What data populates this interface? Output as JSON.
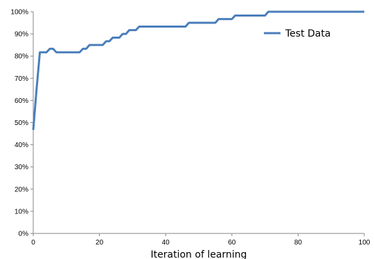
{
  "chart_data": {
    "type": "line",
    "title": "",
    "xlabel": "Iteration of learning",
    "ylabel": "",
    "xlim": [
      0,
      100
    ],
    "ylim": [
      0,
      100
    ],
    "x_ticks": [
      0,
      20,
      40,
      60,
      80,
      100
    ],
    "y_ticks": [
      0,
      10,
      20,
      30,
      40,
      50,
      60,
      70,
      80,
      90,
      100
    ],
    "y_tick_suffix": "%",
    "grid": false,
    "legend_position": "top-right",
    "series": [
      {
        "name": "Test Data",
        "color": "#4a7ebb",
        "x": [
          0,
          1,
          2,
          3,
          4,
          5,
          6,
          7,
          8,
          9,
          10,
          11,
          12,
          13,
          14,
          15,
          16,
          17,
          18,
          19,
          20,
          21,
          22,
          23,
          24,
          25,
          26,
          27,
          28,
          29,
          30,
          31,
          32,
          33,
          34,
          35,
          36,
          37,
          38,
          39,
          40,
          41,
          42,
          43,
          44,
          45,
          46,
          47,
          48,
          49,
          50,
          51,
          52,
          53,
          54,
          55,
          56,
          57,
          58,
          59,
          60,
          61,
          62,
          63,
          64,
          65,
          66,
          67,
          68,
          69,
          70,
          71,
          72,
          73,
          74,
          75,
          76,
          77,
          78,
          79,
          80,
          81,
          82,
          83,
          84,
          85,
          86,
          87,
          88,
          89,
          90,
          91,
          92,
          93,
          94,
          95,
          96,
          97,
          98,
          99,
          100
        ],
        "y": [
          46.7,
          65,
          81.7,
          81.7,
          81.7,
          83.3,
          83.3,
          81.7,
          81.7,
          81.7,
          81.7,
          81.7,
          81.7,
          81.7,
          81.7,
          83.3,
          83.3,
          85,
          85,
          85,
          85,
          85,
          86.7,
          86.7,
          88.3,
          88.3,
          88.3,
          90,
          90,
          91.7,
          91.7,
          91.7,
          93.3,
          93.3,
          93.3,
          93.3,
          93.3,
          93.3,
          93.3,
          93.3,
          93.3,
          93.3,
          93.3,
          93.3,
          93.3,
          93.3,
          93.3,
          95,
          95,
          95,
          95,
          95,
          95,
          95,
          95,
          95,
          96.7,
          96.7,
          96.7,
          96.7,
          96.7,
          98.3,
          98.3,
          98.3,
          98.3,
          98.3,
          98.3,
          98.3,
          98.3,
          98.3,
          98.3,
          100,
          100,
          100,
          100,
          100,
          100,
          100,
          100,
          100,
          100,
          100,
          100,
          100,
          100,
          100,
          100,
          100,
          100,
          100,
          100,
          100,
          100,
          100,
          100,
          100,
          100,
          100,
          100,
          100,
          100
        ]
      }
    ]
  }
}
